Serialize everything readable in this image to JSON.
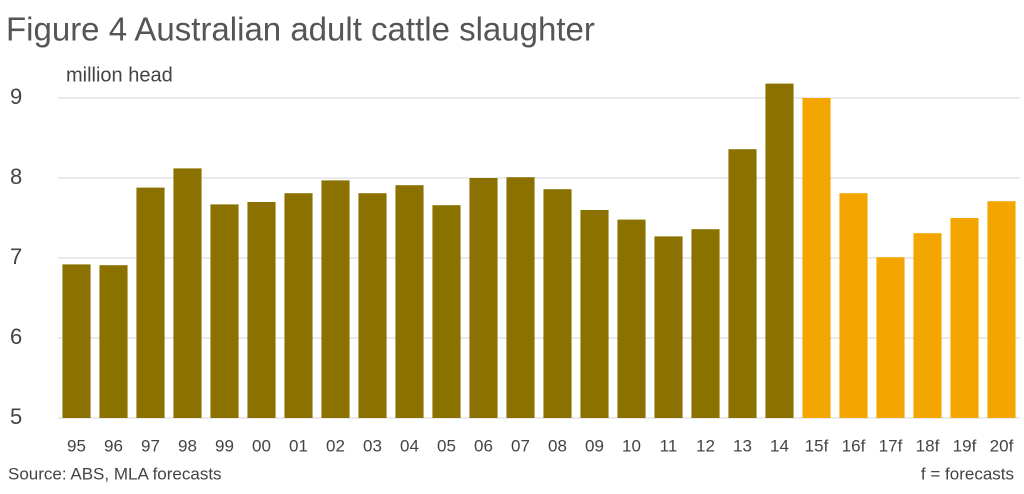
{
  "chart_data": {
    "type": "bar",
    "title": "Figure 4 Australian adult cattle slaughter",
    "y_axis_label": "million head",
    "source": "Source: ABS, MLA forecasts",
    "note": "f = forecasts",
    "categories": [
      "95",
      "96",
      "97",
      "98",
      "99",
      "00",
      "01",
      "02",
      "03",
      "04",
      "05",
      "06",
      "07",
      "08",
      "09",
      "10",
      "11",
      "12",
      "13",
      "14",
      "15f",
      "16f",
      "17f",
      "18f",
      "19f",
      "20f"
    ],
    "values": [
      6.92,
      6.91,
      7.88,
      8.12,
      7.67,
      7.7,
      7.81,
      7.97,
      7.81,
      7.91,
      7.66,
      8.0,
      8.01,
      7.86,
      7.6,
      7.48,
      7.27,
      7.36,
      8.36,
      9.18,
      9.0,
      7.81,
      7.01,
      7.31,
      7.5,
      7.71
    ],
    "colors": [
      "#8a7100",
      "#8a7100",
      "#8a7100",
      "#8a7100",
      "#8a7100",
      "#8a7100",
      "#8a7100",
      "#8a7100",
      "#8a7100",
      "#8a7100",
      "#8a7100",
      "#8a7100",
      "#8a7100",
      "#8a7100",
      "#8a7100",
      "#8a7100",
      "#8a7100",
      "#8a7100",
      "#8a7100",
      "#8a7100",
      "#f4a600",
      "#f4a600",
      "#f4a600",
      "#f4a600",
      "#f4a600",
      "#f4a600"
    ],
    "ylim": [
      5,
      9.25
    ],
    "yticks": [
      5,
      6,
      7,
      8,
      9
    ],
    "grid": true
  }
}
